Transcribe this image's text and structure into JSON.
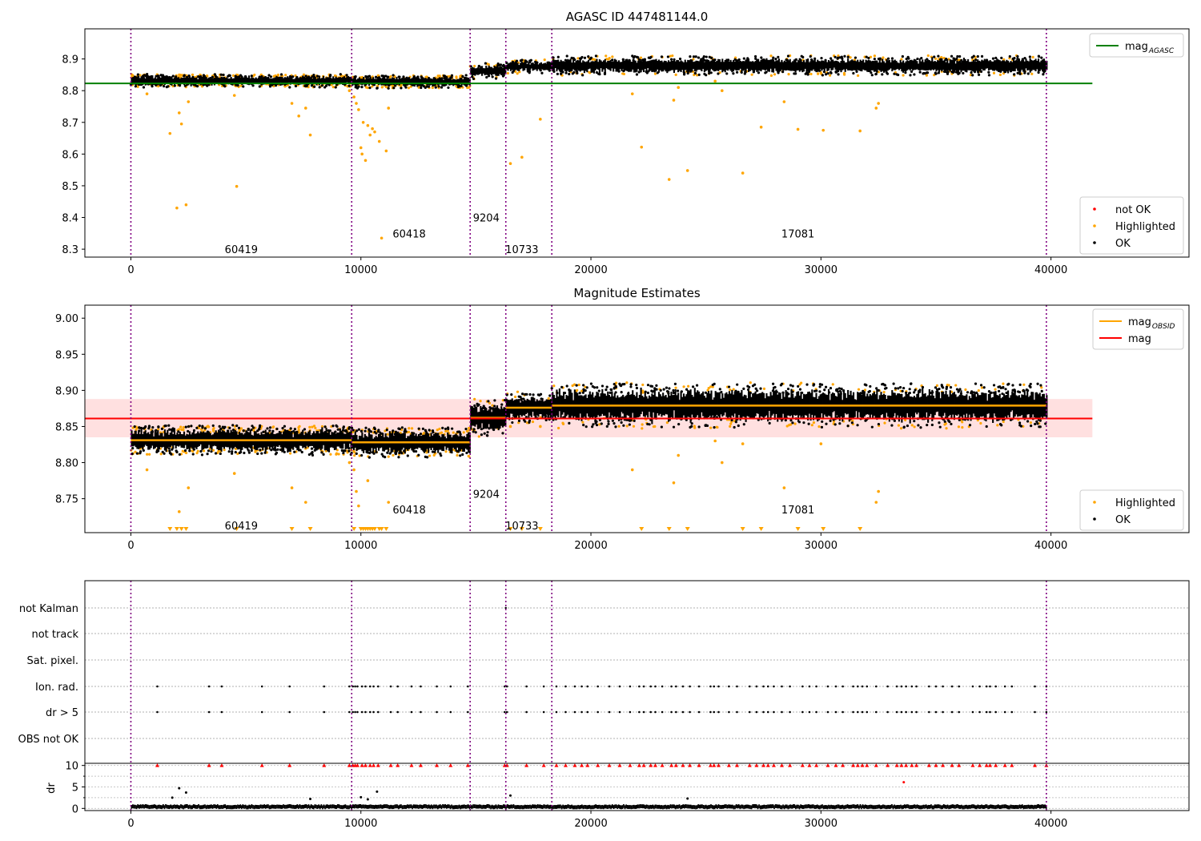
{
  "chart_data": [
    {
      "type": "scatter",
      "title": "AGASC ID 447481144.0",
      "xlim": [
        -2000,
        46000
      ],
      "ylim": [
        8.275,
        8.995
      ],
      "x_ticks": [
        0,
        10000,
        20000,
        30000,
        40000
      ],
      "x_tick_labels": [
        "0",
        "10000",
        "20000",
        "30000",
        "40000"
      ],
      "y_ticks": [
        8.3,
        8.4,
        8.5,
        8.6,
        8.7,
        8.8,
        8.9
      ],
      "y_tick_labels": [
        "8.3",
        "8.4",
        "8.5",
        "8.6",
        "8.7",
        "8.8",
        "8.9"
      ],
      "obs_boundaries": [
        0,
        9600,
        14750,
        16300,
        18300,
        39800
      ],
      "obs_labels": [
        {
          "text": "60419",
          "x": 4800,
          "y": 8.3
        },
        {
          "text": "60418",
          "x": 12100,
          "y": 8.35
        },
        {
          "text": "9204",
          "x": 15450,
          "y": 8.4
        },
        {
          "text": "10733",
          "x": 17000,
          "y": 8.3
        },
        {
          "text": "17081",
          "x": 29000,
          "y": 8.35
        }
      ],
      "segments": [
        {
          "x0": 0,
          "x1": 9600,
          "center": 8.831,
          "spread": 0.011
        },
        {
          "x0": 9600,
          "x1": 14750,
          "center": 8.828,
          "spread": 0.011
        },
        {
          "x0": 14750,
          "x1": 16300,
          "center": 8.862,
          "spread": 0.013
        },
        {
          "x0": 16300,
          "x1": 18300,
          "center": 8.876,
          "spread": 0.011
        },
        {
          "x0": 18300,
          "x1": 39800,
          "center": 8.879,
          "spread": 0.016
        }
      ],
      "mag_agasc": 8.823,
      "highlighted_points": [
        [
          700,
          8.79
        ],
        [
          1700,
          8.665
        ],
        [
          2000,
          8.43
        ],
        [
          2100,
          8.73
        ],
        [
          2200,
          8.695
        ],
        [
          2400,
          8.44
        ],
        [
          2500,
          8.765
        ],
        [
          4500,
          8.785
        ],
        [
          4600,
          8.498
        ],
        [
          7000,
          8.76
        ],
        [
          7300,
          8.72
        ],
        [
          7600,
          8.745
        ],
        [
          7800,
          8.66
        ],
        [
          9500,
          8.8
        ],
        [
          9700,
          8.78
        ],
        [
          9800,
          8.76
        ],
        [
          9900,
          8.74
        ],
        [
          10000,
          8.62
        ],
        [
          10050,
          8.6
        ],
        [
          10100,
          8.7
        ],
        [
          10200,
          8.58
        ],
        [
          10300,
          8.69
        ],
        [
          10400,
          8.66
        ],
        [
          10500,
          8.68
        ],
        [
          10600,
          8.67
        ],
        [
          10800,
          8.64
        ],
        [
          10900,
          8.335
        ],
        [
          11100,
          8.61
        ],
        [
          11200,
          8.745
        ],
        [
          16500,
          8.57
        ],
        [
          17000,
          8.59
        ],
        [
          17800,
          8.71
        ],
        [
          21800,
          8.79
        ],
        [
          22200,
          8.622
        ],
        [
          23400,
          8.52
        ],
        [
          23600,
          8.77
        ],
        [
          23800,
          8.81
        ],
        [
          24200,
          8.548
        ],
        [
          25400,
          8.83
        ],
        [
          25700,
          8.8
        ],
        [
          26600,
          8.54
        ],
        [
          27400,
          8.685
        ],
        [
          28400,
          8.765
        ],
        [
          29000,
          8.678
        ],
        [
          30100,
          8.675
        ],
        [
          31700,
          8.673
        ],
        [
          32400,
          8.745
        ],
        [
          32500,
          8.76
        ]
      ],
      "legend_top": [
        {
          "label": "mag",
          "subscript": "AGASC",
          "color": "#008000"
        }
      ],
      "legend_bottom": [
        {
          "label": "not OK",
          "color": "#ff0000"
        },
        {
          "label": "Highlighted",
          "color": "#ffa500"
        },
        {
          "label": "OK",
          "color": "#000000"
        }
      ]
    },
    {
      "type": "scatter",
      "title": "Magnitude Estimates",
      "xlim": [
        -2000,
        46000
      ],
      "ylim": [
        8.703,
        9.018
      ],
      "x_ticks": [
        0,
        10000,
        20000,
        30000,
        40000
      ],
      "x_tick_labels": [
        "0",
        "10000",
        "20000",
        "30000",
        "40000"
      ],
      "y_ticks": [
        8.75,
        8.8,
        8.85,
        8.9,
        8.95,
        9.0
      ],
      "y_tick_labels": [
        "8.75",
        "8.80",
        "8.85",
        "8.90",
        "8.95",
        "9.00"
      ],
      "obs_boundaries": [
        0,
        9600,
        14750,
        16300,
        18300,
        39800
      ],
      "obs_labels": [
        {
          "text": "60419",
          "x": 4800,
          "y": 8.713
        },
        {
          "text": "60418",
          "x": 12100,
          "y": 8.735
        },
        {
          "text": "9204",
          "x": 15450,
          "y": 8.757
        },
        {
          "text": "10733",
          "x": 17000,
          "y": 8.713
        },
        {
          "text": "17081",
          "x": 29000,
          "y": 8.735
        }
      ],
      "mag": 8.861,
      "mag_band": [
        8.835,
        8.888
      ],
      "mag_obsid": [
        {
          "x0": 0,
          "x1": 9600,
          "value": 8.831
        },
        {
          "x0": 9600,
          "x1": 14750,
          "value": 8.828
        },
        {
          "x0": 14750,
          "x1": 16300,
          "value": 8.862
        },
        {
          "x0": 16300,
          "x1": 18300,
          "value": 8.876
        },
        {
          "x0": 18300,
          "x1": 39800,
          "value": 8.879
        }
      ],
      "highlighted_points": [
        [
          700,
          8.79
        ],
        [
          2100,
          8.732
        ],
        [
          2500,
          8.765
        ],
        [
          4500,
          8.785
        ],
        [
          7000,
          8.765
        ],
        [
          7600,
          8.745
        ],
        [
          9500,
          8.8
        ],
        [
          9700,
          8.79
        ],
        [
          9800,
          8.76
        ],
        [
          9900,
          8.74
        ],
        [
          10300,
          8.775
        ],
        [
          11200,
          8.745
        ],
        [
          16500,
          8.85
        ],
        [
          17800,
          8.85
        ],
        [
          21800,
          8.79
        ],
        [
          23600,
          8.772
        ],
        [
          23800,
          8.81
        ],
        [
          25400,
          8.83
        ],
        [
          25700,
          8.8
        ],
        [
          26600,
          8.826
        ],
        [
          28400,
          8.765
        ],
        [
          30000,
          8.826
        ],
        [
          32400,
          8.745
        ],
        [
          32500,
          8.76
        ]
      ],
      "clipped_low_x": [
        1700,
        2000,
        2200,
        2400,
        4600,
        7000,
        7800,
        9700,
        10000,
        10100,
        10200,
        10300,
        10400,
        10500,
        10600,
        10800,
        10900,
        11100,
        16500,
        17000,
        17800,
        22200,
        23400,
        24200,
        26600,
        27400,
        29000,
        30100,
        31700
      ],
      "legend_top": [
        {
          "label": "mag",
          "subscript": "OBSID",
          "color": "#ffa500"
        },
        {
          "label": "mag",
          "subscript": "",
          "color": "#ff0000"
        }
      ],
      "legend_bottom": [
        {
          "label": "Highlighted",
          "color": "#ffa500"
        },
        {
          "label": "OK",
          "color": "#000000"
        }
      ]
    },
    {
      "type": "scatter",
      "xlim": [
        -2000,
        46000
      ],
      "flag_rows": [
        "not Kalman",
        "not track",
        "Sat. pixel.",
        "Ion. rad.",
        "dr > 5",
        "OBS not OK"
      ],
      "flag_x": [
        1150,
        3400,
        3950,
        5700,
        6900,
        8400,
        9500,
        9650,
        9750,
        9850,
        10050,
        10200,
        10400,
        10550,
        10750,
        11300,
        11600,
        12200,
        12600,
        13300,
        13900,
        14650,
        16250,
        16350,
        17200,
        17950,
        18500,
        18900,
        19300,
        19600,
        19850,
        20300,
        20800,
        21250,
        21700,
        22100,
        22300,
        22600,
        22800,
        23100,
        23500,
        23700,
        24000,
        24300,
        24700,
        25200,
        25350,
        25550,
        26000,
        26350,
        26900,
        27200,
        27500,
        27700,
        27950,
        28300,
        28650,
        29200,
        29500,
        29800,
        30300,
        30650,
        30950,
        31400,
        31600,
        31800,
        32000,
        32400,
        32900,
        33300,
        33500,
        33700,
        33950,
        34150,
        34700,
        35000,
        35300,
        35700,
        36000,
        36600,
        36900,
        37200,
        37350,
        37600,
        38000,
        38300,
        39300,
        39800
      ],
      "dr_ylim": [
        -0.5,
        10.5
      ],
      "dr_ticks": [
        0,
        5,
        10
      ],
      "dr_tick_labels": [
        "0",
        "5",
        "10"
      ],
      "dr_ylabel": "dr",
      "dr_outliers": [
        [
          1800,
          2.5
        ],
        [
          2100,
          4.7
        ],
        [
          2400,
          3.7
        ],
        [
          7800,
          2.2
        ],
        [
          10000,
          2.6
        ],
        [
          10300,
          2.1
        ],
        [
          10700,
          3.9
        ],
        [
          16500,
          3.0
        ],
        [
          24200,
          2.3
        ],
        [
          33600,
          6.1
        ]
      ],
      "x_ticks": [
        0,
        10000,
        20000,
        30000,
        40000
      ],
      "x_tick_labels": [
        "0",
        "10000",
        "20000",
        "30000",
        "40000"
      ]
    }
  ]
}
